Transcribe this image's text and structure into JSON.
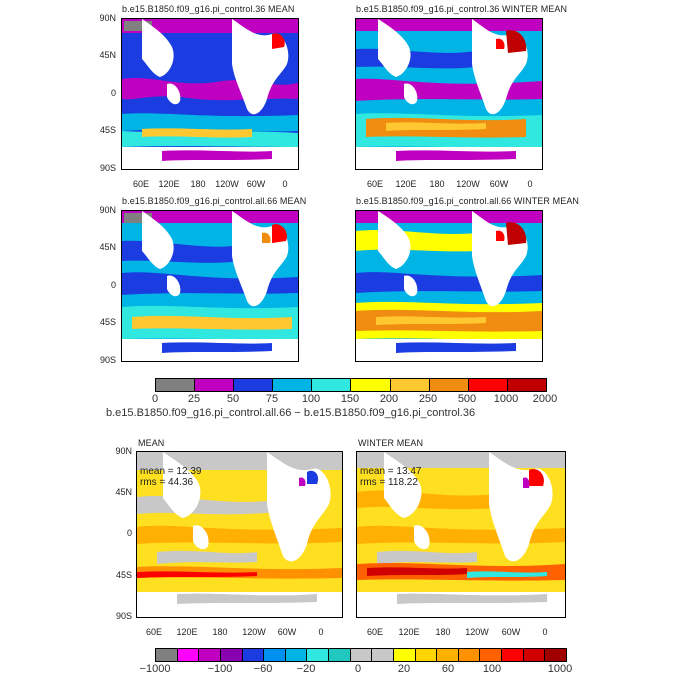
{
  "panels": {
    "p1": {
      "title": "b.e15.B1850.f09_g16.pi_control.36 MEAN"
    },
    "p2": {
      "title": "b.e15.B1850.f09_g16.pi_control.36 WINTER MEAN"
    },
    "p3": {
      "title": "b.e15.B1850.f09_g16.pi_control.all.66 MEAN"
    },
    "p4": {
      "title": "b.e15.B1850.f09_g16.pi_control.all.66 WINTER MEAN"
    },
    "p5": {
      "title": "MEAN",
      "stat1": "mean = 12.39",
      "stat2": "rms = 44.36"
    },
    "p6": {
      "title": "WINTER MEAN",
      "stat1": "mean = 13.47",
      "stat2": "rms = 118.22"
    }
  },
  "axes": {
    "y_ticks": [
      "90N",
      "45N",
      "0",
      "45S",
      "90S"
    ],
    "x_ticks": [
      "60E",
      "120E",
      "180",
      "120W",
      "60W",
      "0"
    ]
  },
  "colorbar1": {
    "colors": [
      "#808080",
      "#c000c0",
      "#1a3ce0",
      "#00b4e6",
      "#30e8e0",
      "#ffff00",
      "#ffc830",
      "#f08c10",
      "#ff0000",
      "#c00000"
    ],
    "labels": [
      "0",
      "25",
      "50",
      "75",
      "100",
      "150",
      "200",
      "250",
      "500",
      "1000",
      "2000"
    ]
  },
  "diff_title": "b.e15.B1850.f09_g16.pi_control.all.66 − b.e15.B1850.f09_g16.pi_control.36",
  "colorbar2": {
    "colors": [
      "#808080",
      "#ff00ff",
      "#c000c0",
      "#8800b0",
      "#1a3ce0",
      "#0090f0",
      "#00b4e6",
      "#30e8e0",
      "#20c8c0",
      "#c8c8c8",
      "#c8c8c8",
      "#ffff00",
      "#ffd400",
      "#ffb000",
      "#ff9000",
      "#ff6000",
      "#ff0000",
      "#d00000",
      "#a00000"
    ],
    "labels": [
      "−1000",
      "−100",
      "−60",
      "−20",
      "0",
      "20",
      "60",
      "100",
      "1000"
    ]
  }
}
